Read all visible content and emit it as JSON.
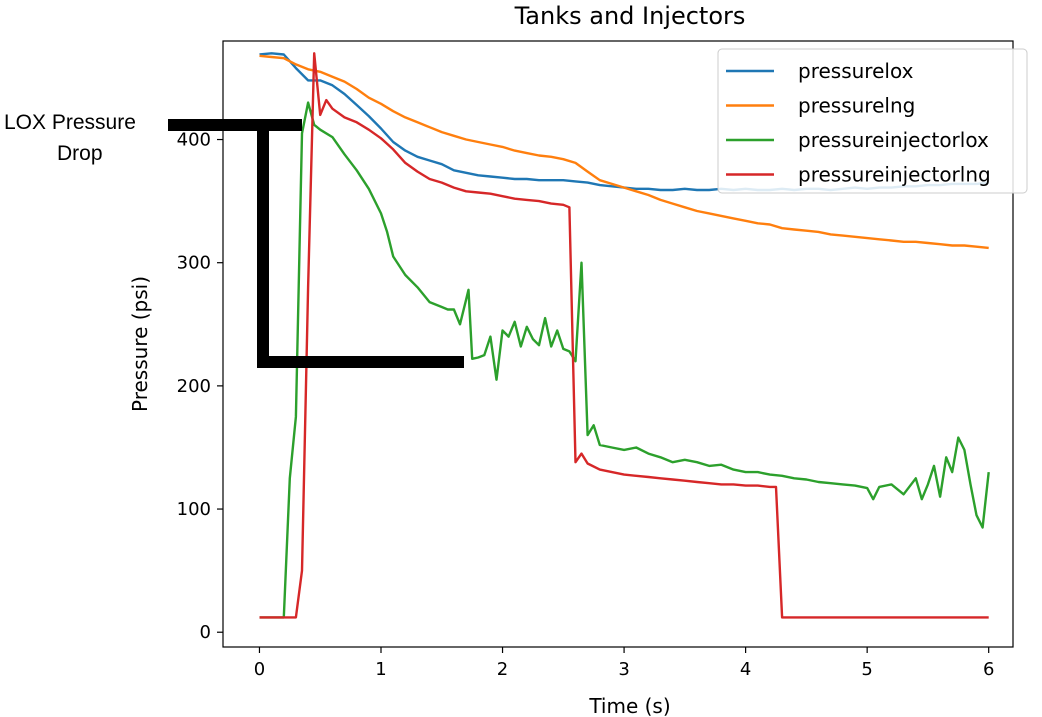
{
  "chart_data": {
    "type": "line",
    "title": "Tanks and Injectors",
    "xlabel": "Time (s)",
    "ylabel": "Pressure (psi)",
    "xlim": [
      -0.3,
      6.2
    ],
    "ylim": [
      -12,
      480
    ],
    "xticks": [
      0,
      1,
      2,
      3,
      4,
      5,
      6
    ],
    "yticks": [
      0,
      100,
      200,
      300,
      400
    ],
    "grid": false,
    "legend": "top-right",
    "series": [
      {
        "name": "pressurelox",
        "color": "#1f77b4",
        "points": [
          [
            0,
            469
          ],
          [
            0.1,
            470
          ],
          [
            0.2,
            469
          ],
          [
            0.3,
            458
          ],
          [
            0.4,
            448
          ],
          [
            0.5,
            448
          ],
          [
            0.6,
            444
          ],
          [
            0.7,
            437
          ],
          [
            0.8,
            428
          ],
          [
            0.9,
            419
          ],
          [
            1.0,
            409
          ],
          [
            1.1,
            398
          ],
          [
            1.2,
            391
          ],
          [
            1.3,
            386
          ],
          [
            1.4,
            383
          ],
          [
            1.5,
            380
          ],
          [
            1.6,
            375
          ],
          [
            1.7,
            373
          ],
          [
            1.8,
            371
          ],
          [
            1.9,
            370
          ],
          [
            2.0,
            369
          ],
          [
            2.1,
            368
          ],
          [
            2.2,
            368
          ],
          [
            2.3,
            367
          ],
          [
            2.4,
            367
          ],
          [
            2.5,
            367
          ],
          [
            2.6,
            366
          ],
          [
            2.7,
            365
          ],
          [
            2.8,
            363
          ],
          [
            2.9,
            362
          ],
          [
            3.0,
            361
          ],
          [
            3.1,
            360
          ],
          [
            3.2,
            360
          ],
          [
            3.3,
            359
          ],
          [
            3.4,
            359
          ],
          [
            3.5,
            360
          ],
          [
            3.6,
            359
          ],
          [
            3.7,
            359
          ],
          [
            3.8,
            360
          ],
          [
            3.9,
            359
          ],
          [
            4.0,
            360
          ],
          [
            4.1,
            359
          ],
          [
            4.2,
            359
          ],
          [
            4.3,
            360
          ],
          [
            4.4,
            359
          ],
          [
            4.5,
            360
          ],
          [
            4.6,
            360
          ],
          [
            4.7,
            359
          ],
          [
            4.8,
            360
          ],
          [
            4.9,
            361
          ],
          [
            5.0,
            360
          ],
          [
            5.1,
            361
          ],
          [
            5.2,
            361
          ],
          [
            5.3,
            362
          ],
          [
            5.4,
            362
          ],
          [
            5.5,
            363
          ],
          [
            5.6,
            363
          ],
          [
            5.7,
            364
          ],
          [
            5.8,
            364
          ],
          [
            5.9,
            364
          ],
          [
            6.0,
            365
          ]
        ]
      },
      {
        "name": "pressurelng",
        "color": "#ff7f0e",
        "points": [
          [
            0,
            468
          ],
          [
            0.1,
            467
          ],
          [
            0.2,
            466
          ],
          [
            0.3,
            461
          ],
          [
            0.4,
            457
          ],
          [
            0.5,
            455
          ],
          [
            0.6,
            451
          ],
          [
            0.7,
            447
          ],
          [
            0.8,
            441
          ],
          [
            0.9,
            434
          ],
          [
            1.0,
            429
          ],
          [
            1.1,
            423
          ],
          [
            1.2,
            418
          ],
          [
            1.3,
            414
          ],
          [
            1.4,
            410
          ],
          [
            1.5,
            406
          ],
          [
            1.6,
            403
          ],
          [
            1.7,
            400
          ],
          [
            1.8,
            398
          ],
          [
            1.9,
            396
          ],
          [
            2.0,
            394
          ],
          [
            2.1,
            391
          ],
          [
            2.2,
            389
          ],
          [
            2.3,
            387
          ],
          [
            2.4,
            386
          ],
          [
            2.5,
            384
          ],
          [
            2.6,
            381
          ],
          [
            2.7,
            374
          ],
          [
            2.8,
            367
          ],
          [
            2.9,
            364
          ],
          [
            3.0,
            361
          ],
          [
            3.1,
            358
          ],
          [
            3.2,
            355
          ],
          [
            3.3,
            351
          ],
          [
            3.4,
            348
          ],
          [
            3.5,
            345
          ],
          [
            3.6,
            342
          ],
          [
            3.7,
            340
          ],
          [
            3.8,
            338
          ],
          [
            3.9,
            336
          ],
          [
            4.0,
            334
          ],
          [
            4.1,
            332
          ],
          [
            4.2,
            331
          ],
          [
            4.3,
            328
          ],
          [
            4.4,
            327
          ],
          [
            4.5,
            326
          ],
          [
            4.6,
            325
          ],
          [
            4.7,
            323
          ],
          [
            4.8,
            322
          ],
          [
            4.9,
            321
          ],
          [
            5.0,
            320
          ],
          [
            5.1,
            319
          ],
          [
            5.2,
            318
          ],
          [
            5.3,
            317
          ],
          [
            5.4,
            317
          ],
          [
            5.5,
            316
          ],
          [
            5.6,
            315
          ],
          [
            5.7,
            314
          ],
          [
            5.8,
            314
          ],
          [
            5.9,
            313
          ],
          [
            6.0,
            312
          ]
        ]
      },
      {
        "name": "pressureinjectorlox",
        "color": "#2ca02c",
        "points": [
          [
            0,
            12
          ],
          [
            0.1,
            12
          ],
          [
            0.2,
            12
          ],
          [
            0.25,
            125
          ],
          [
            0.3,
            175
          ],
          [
            0.35,
            405
          ],
          [
            0.4,
            430
          ],
          [
            0.45,
            412
          ],
          [
            0.5,
            408
          ],
          [
            0.6,
            402
          ],
          [
            0.7,
            388
          ],
          [
            0.8,
            375
          ],
          [
            0.9,
            360
          ],
          [
            1.0,
            340
          ],
          [
            1.05,
            325
          ],
          [
            1.1,
            305
          ],
          [
            1.2,
            290
          ],
          [
            1.3,
            280
          ],
          [
            1.4,
            268
          ],
          [
            1.5,
            264
          ],
          [
            1.55,
            262
          ],
          [
            1.6,
            262
          ],
          [
            1.65,
            250
          ],
          [
            1.7,
            270
          ],
          [
            1.72,
            278
          ],
          [
            1.75,
            222
          ],
          [
            1.8,
            223
          ],
          [
            1.85,
            225
          ],
          [
            1.9,
            240
          ],
          [
            1.95,
            205
          ],
          [
            2.0,
            245
          ],
          [
            2.05,
            240
          ],
          [
            2.1,
            252
          ],
          [
            2.15,
            232
          ],
          [
            2.2,
            248
          ],
          [
            2.25,
            238
          ],
          [
            2.3,
            233
          ],
          [
            2.35,
            255
          ],
          [
            2.4,
            232
          ],
          [
            2.45,
            245
          ],
          [
            2.5,
            230
          ],
          [
            2.55,
            228
          ],
          [
            2.6,
            220
          ],
          [
            2.65,
            300
          ],
          [
            2.7,
            160
          ],
          [
            2.75,
            168
          ],
          [
            2.8,
            152
          ],
          [
            2.9,
            150
          ],
          [
            3.0,
            148
          ],
          [
            3.1,
            150
          ],
          [
            3.2,
            145
          ],
          [
            3.3,
            142
          ],
          [
            3.4,
            138
          ],
          [
            3.5,
            140
          ],
          [
            3.6,
            138
          ],
          [
            3.7,
            135
          ],
          [
            3.8,
            136
          ],
          [
            3.9,
            132
          ],
          [
            4.0,
            130
          ],
          [
            4.1,
            130
          ],
          [
            4.2,
            128
          ],
          [
            4.3,
            127
          ],
          [
            4.4,
            125
          ],
          [
            4.5,
            124
          ],
          [
            4.6,
            122
          ],
          [
            4.7,
            121
          ],
          [
            4.8,
            120
          ],
          [
            4.9,
            119
          ],
          [
            5.0,
            117
          ],
          [
            5.05,
            108
          ],
          [
            5.1,
            118
          ],
          [
            5.2,
            120
          ],
          [
            5.3,
            112
          ],
          [
            5.4,
            125
          ],
          [
            5.45,
            108
          ],
          [
            5.5,
            120
          ],
          [
            5.55,
            135
          ],
          [
            5.6,
            110
          ],
          [
            5.65,
            142
          ],
          [
            5.7,
            130
          ],
          [
            5.75,
            158
          ],
          [
            5.8,
            148
          ],
          [
            5.85,
            120
          ],
          [
            5.9,
            95
          ],
          [
            5.95,
            85
          ],
          [
            6.0,
            130
          ]
        ]
      },
      {
        "name": "pressureinjectorlng",
        "color": "#d62728",
        "points": [
          [
            0,
            12
          ],
          [
            0.1,
            12
          ],
          [
            0.2,
            12
          ],
          [
            0.3,
            12
          ],
          [
            0.35,
            50
          ],
          [
            0.4,
            280
          ],
          [
            0.45,
            470
          ],
          [
            0.5,
            420
          ],
          [
            0.55,
            432
          ],
          [
            0.6,
            425
          ],
          [
            0.7,
            418
          ],
          [
            0.8,
            414
          ],
          [
            0.9,
            408
          ],
          [
            1.0,
            401
          ],
          [
            1.1,
            392
          ],
          [
            1.2,
            381
          ],
          [
            1.3,
            374
          ],
          [
            1.4,
            368
          ],
          [
            1.5,
            365
          ],
          [
            1.6,
            361
          ],
          [
            1.7,
            358
          ],
          [
            1.8,
            357
          ],
          [
            1.9,
            356
          ],
          [
            2.0,
            354
          ],
          [
            2.1,
            352
          ],
          [
            2.2,
            351
          ],
          [
            2.3,
            350
          ],
          [
            2.4,
            348
          ],
          [
            2.5,
            347
          ],
          [
            2.55,
            345
          ],
          [
            2.6,
            138
          ],
          [
            2.65,
            145
          ],
          [
            2.7,
            137
          ],
          [
            2.8,
            132
          ],
          [
            2.9,
            130
          ],
          [
            3.0,
            128
          ],
          [
            3.1,
            127
          ],
          [
            3.2,
            126
          ],
          [
            3.3,
            125
          ],
          [
            3.4,
            124
          ],
          [
            3.5,
            123
          ],
          [
            3.6,
            122
          ],
          [
            3.7,
            121
          ],
          [
            3.8,
            120
          ],
          [
            3.9,
            120
          ],
          [
            4.0,
            119
          ],
          [
            4.1,
            119
          ],
          [
            4.2,
            118
          ],
          [
            4.25,
            118
          ],
          [
            4.3,
            12
          ],
          [
            4.5,
            12
          ],
          [
            5.0,
            12
          ],
          [
            5.5,
            12
          ],
          [
            6.0,
            12
          ]
        ]
      }
    ],
    "annotation": {
      "text_line1": "LOX Pressure",
      "text_line2": "Drop",
      "top_value": 428,
      "bottom_value": 228
    }
  }
}
